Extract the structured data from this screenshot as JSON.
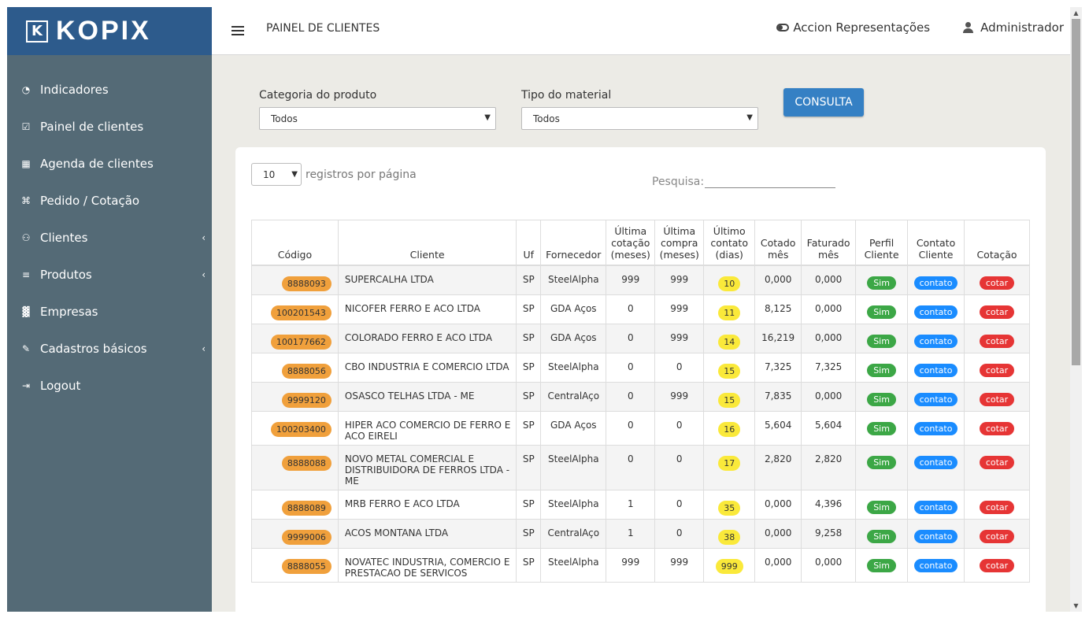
{
  "brand": {
    "logo_letter": "K",
    "name": "KOPIX"
  },
  "header": {
    "title": "PAINEL DE CLIENTES",
    "company": "Accion Representações",
    "user": "Administrador"
  },
  "sidebar": {
    "items": [
      {
        "label": "Indicadores",
        "icon": "dashboard-icon",
        "has_submenu": false
      },
      {
        "label": "Painel de clientes",
        "icon": "check-square-icon",
        "has_submenu": false
      },
      {
        "label": "Agenda de clientes",
        "icon": "calendar-icon",
        "has_submenu": false
      },
      {
        "label": "Pedido / Cotação",
        "icon": "cart-icon",
        "has_submenu": false
      },
      {
        "label": "Clientes",
        "icon": "users-icon",
        "has_submenu": true
      },
      {
        "label": "Produtos",
        "icon": "list-icon",
        "has_submenu": true
      },
      {
        "label": "Empresas",
        "icon": "chart-icon",
        "has_submenu": false
      },
      {
        "label": "Cadastros básicos",
        "icon": "edit-icon",
        "has_submenu": true
      },
      {
        "label": "Logout",
        "icon": "sign-out-icon",
        "has_submenu": false
      }
    ]
  },
  "filters": {
    "categoria_label": "Categoria do produto",
    "categoria_value": "Todos",
    "tipo_label": "Tipo do material",
    "tipo_value": "Todos",
    "consulta_label": "CONSULTA"
  },
  "table_controls": {
    "page_size": "10",
    "page_size_label": "registros por página",
    "search_label": "Pesquisa:"
  },
  "table": {
    "headers": [
      "Código",
      "Cliente",
      "Uf",
      "Fornecedor",
      "Última cotação (meses)",
      "Última compra (meses)",
      "Último contato (dias)",
      "Cotado mês",
      "Faturado mês",
      "Perfil Cliente",
      "Contato Cliente",
      "Cotação"
    ],
    "rows": [
      {
        "codigo": "8888093",
        "cliente": "SUPERCALHA LTDA",
        "uf": "SP",
        "fornecedor": "SteelAlpha",
        "ult_cotacao": "999",
        "ult_compra": "999",
        "ult_contato": "10",
        "cotado": "0,000",
        "faturado": "0,000",
        "perfil": "Sim",
        "contato": "contato",
        "cotacao": "cotar"
      },
      {
        "codigo": "100201543",
        "cliente": "NICOFER FERRO E ACO LTDA",
        "uf": "SP",
        "fornecedor": "GDA Aços",
        "ult_cotacao": "0",
        "ult_compra": "999",
        "ult_contato": "11",
        "cotado": "8,125",
        "faturado": "0,000",
        "perfil": "Sim",
        "contato": "contato",
        "cotacao": "cotar"
      },
      {
        "codigo": "100177662",
        "cliente": "COLORADO FERRO E ACO LTDA",
        "uf": "SP",
        "fornecedor": "GDA Aços",
        "ult_cotacao": "0",
        "ult_compra": "999",
        "ult_contato": "14",
        "cotado": "16,219",
        "faturado": "0,000",
        "perfil": "Sim",
        "contato": "contato",
        "cotacao": "cotar"
      },
      {
        "codigo": "8888056",
        "cliente": "CBO INDUSTRIA E COMERCIO LTDA",
        "uf": "SP",
        "fornecedor": "SteelAlpha",
        "ult_cotacao": "0",
        "ult_compra": "0",
        "ult_contato": "15",
        "cotado": "7,325",
        "faturado": "7,325",
        "perfil": "Sim",
        "contato": "contato",
        "cotacao": "cotar"
      },
      {
        "codigo": "9999120",
        "cliente": "OSASCO TELHAS LTDA - ME",
        "uf": "SP",
        "fornecedor": "CentralAço",
        "ult_cotacao": "0",
        "ult_compra": "999",
        "ult_contato": "15",
        "cotado": "7,835",
        "faturado": "0,000",
        "perfil": "Sim",
        "contato": "contato",
        "cotacao": "cotar"
      },
      {
        "codigo": "100203400",
        "cliente": "HIPER ACO COMERCIO DE FERRO E ACO EIRELI",
        "uf": "SP",
        "fornecedor": "GDA Aços",
        "ult_cotacao": "0",
        "ult_compra": "0",
        "ult_contato": "16",
        "cotado": "5,604",
        "faturado": "5,604",
        "perfil": "Sim",
        "contato": "contato",
        "cotacao": "cotar"
      },
      {
        "codigo": "8888088",
        "cliente": "NOVO METAL COMERCIAL E DISTRIBUIDORA DE FERROS LTDA - ME",
        "uf": "SP",
        "fornecedor": "SteelAlpha",
        "ult_cotacao": "0",
        "ult_compra": "0",
        "ult_contato": "17",
        "cotado": "2,820",
        "faturado": "2,820",
        "perfil": "Sim",
        "contato": "contato",
        "cotacao": "cotar"
      },
      {
        "codigo": "8888089",
        "cliente": "MRB FERRO E ACO LTDA",
        "uf": "SP",
        "fornecedor": "SteelAlpha",
        "ult_cotacao": "1",
        "ult_compra": "0",
        "ult_contato": "35",
        "cotado": "0,000",
        "faturado": "4,396",
        "perfil": "Sim",
        "contato": "contato",
        "cotacao": "cotar"
      },
      {
        "codigo": "9999006",
        "cliente": "ACOS MONTANA LTDA",
        "uf": "SP",
        "fornecedor": "CentralAço",
        "ult_cotacao": "1",
        "ult_compra": "0",
        "ult_contato": "38",
        "cotado": "0,000",
        "faturado": "9,258",
        "perfil": "Sim",
        "contato": "contato",
        "cotacao": "cotar"
      },
      {
        "codigo": "8888055",
        "cliente": "NOVATEC INDUSTRIA, COMERCIO E PRESTACAO DE SERVICOS",
        "uf": "SP",
        "fornecedor": "SteelAlpha",
        "ult_cotacao": "999",
        "ult_compra": "999",
        "ult_contato": "999",
        "cotado": "0,000",
        "faturado": "0,000",
        "perfil": "Sim",
        "contato": "contato",
        "cotacao": "cotar"
      }
    ]
  },
  "colors": {
    "sidebar": "#546a76",
    "brand": "#2d5b8c",
    "code_badge": "#f0a03c",
    "contact_days_badge": "#fae93a",
    "sim": "#3ca746",
    "contato": "#1a8cff",
    "cotar": "#e63535",
    "consulta_button": "#3580c4"
  }
}
